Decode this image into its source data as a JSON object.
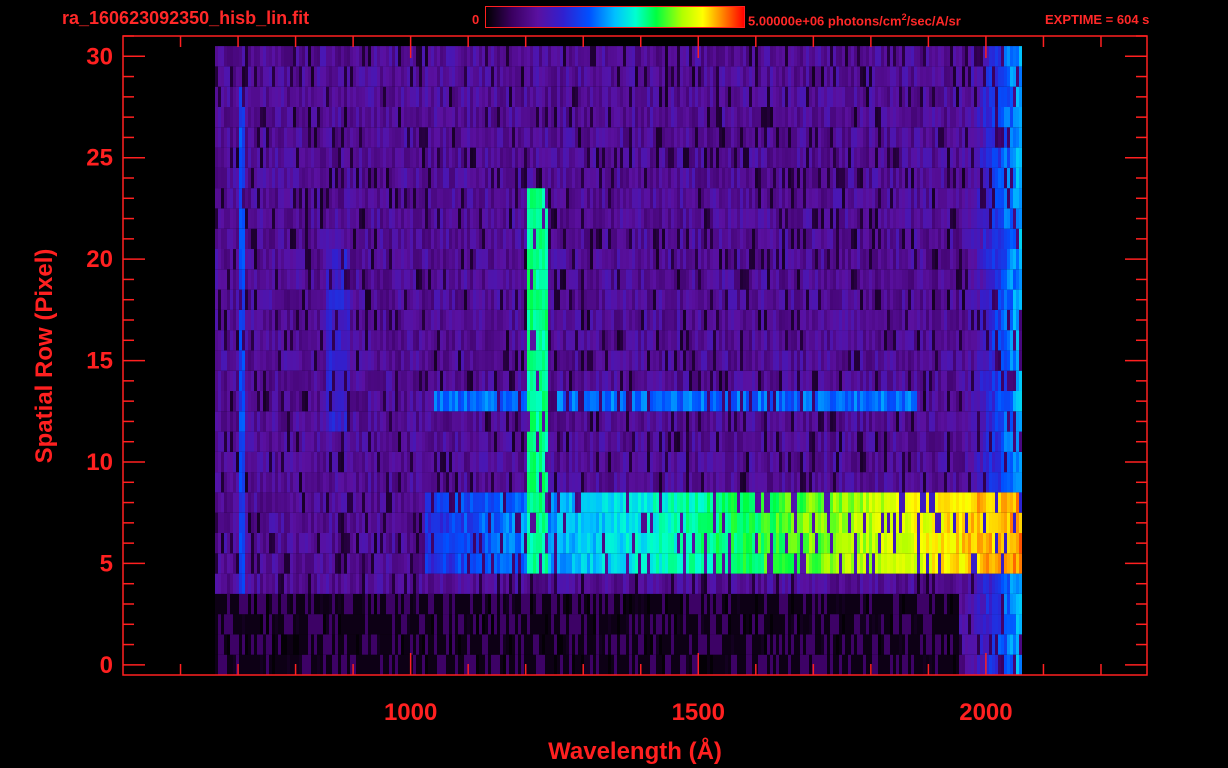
{
  "header": {
    "filename": "ra_160623092350_hisb_lin.fit",
    "colorbar_min": "0",
    "colorbar_max_value": "5.00000e+06",
    "colorbar_units_pre": "photons/cm",
    "colorbar_units_sup": "2",
    "colorbar_units_post": "/sec/A/sr",
    "exptime": "EXPTIME = 604 s"
  },
  "colors": {
    "axis": "#ff2020",
    "background": "#000000",
    "colormap": [
      "#000000",
      "#3a0060",
      "#5a10a0",
      "#3020d0",
      "#0050ff",
      "#00c0ff",
      "#00ffd0",
      "#00ff40",
      "#b0ff00",
      "#ffff00",
      "#ff8000",
      "#ff0000"
    ]
  },
  "chart_data": {
    "type": "heatmap",
    "xlabel": "Wavelength (Å)",
    "ylabel": "Spatial Row (Pixel)",
    "xlim": [
      500,
      2280
    ],
    "ylim": [
      -0.5,
      31
    ],
    "x_ticks": [
      1000,
      1500,
      2000
    ],
    "y_ticks": [
      0,
      5,
      10,
      15,
      20,
      25,
      30
    ],
    "grid": false,
    "colorbar_range": [
      0,
      5000000
    ],
    "data_extent": {
      "x_min": 660,
      "x_max": 2060,
      "row_min": 0,
      "row_max": 30
    },
    "features": [
      {
        "label": "Lyman-alpha line",
        "x_center": 1216,
        "x_halfwidth": 18,
        "rows": [
          5,
          23
        ],
        "level": 0.55
      },
      {
        "label": "bright continuum band",
        "x_range": [
          1020,
          2060
        ],
        "rows": [
          5,
          8
        ],
        "level_start": 0.3,
        "level_end": 0.9
      },
      {
        "label": "continuum stripe",
        "x_range": [
          1040,
          1880
        ],
        "rows": [
          13,
          13
        ],
        "level": 0.38
      },
      {
        "label": "faint line",
        "x_center": 705,
        "x_halfwidth": 5,
        "rows": [
          4,
          28
        ],
        "level": 0.3
      },
      {
        "label": "faint line",
        "x_center": 870,
        "x_halfwidth": 20,
        "rows": [
          12,
          20
        ],
        "level": 0.22
      },
      {
        "label": "red edge",
        "x_range": [
          1960,
          2060
        ],
        "rows": [
          0,
          30
        ],
        "level_start": 0.15,
        "level_end": 0.45
      }
    ]
  }
}
